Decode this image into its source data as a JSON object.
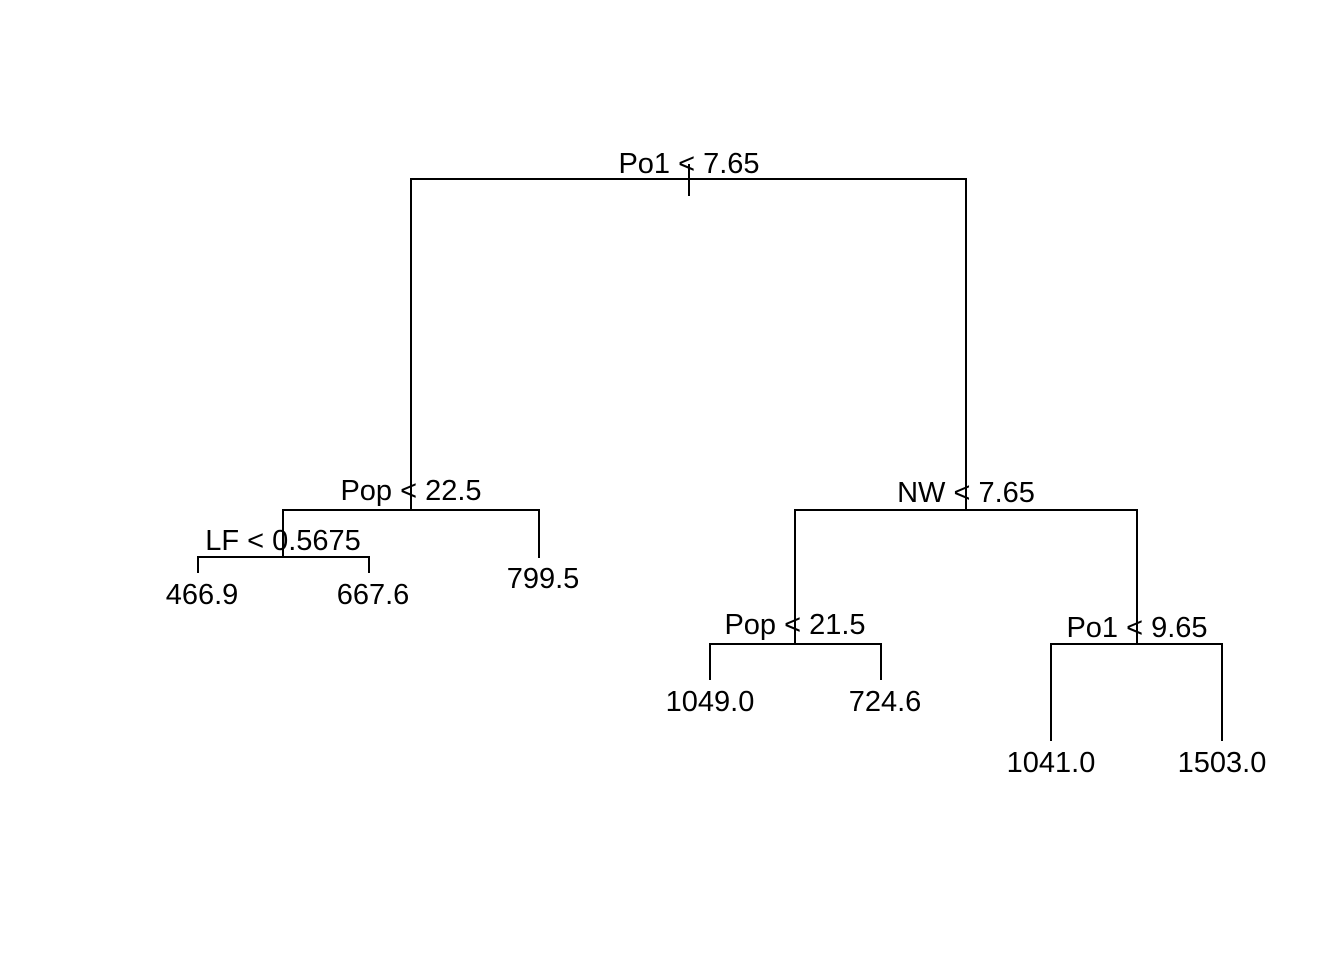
{
  "tree": {
    "root": {
      "split": "Po1 < 7.65",
      "left": {
        "split": "Pop < 22.5",
        "left": {
          "split": "LF < 0.5675",
          "left": {
            "leaf": "466.9"
          },
          "right": {
            "leaf": "667.6"
          }
        },
        "right": {
          "leaf": "799.5"
        }
      },
      "right": {
        "split": "NW < 7.65",
        "left": {
          "split": "Pop < 21.5",
          "left": {
            "leaf": "1049.0"
          },
          "right": {
            "leaf": "724.6"
          }
        },
        "right": {
          "split": "Po1 < 9.65",
          "left": {
            "leaf": "1041.0"
          },
          "right": {
            "leaf": "1503.0"
          }
        }
      }
    }
  }
}
